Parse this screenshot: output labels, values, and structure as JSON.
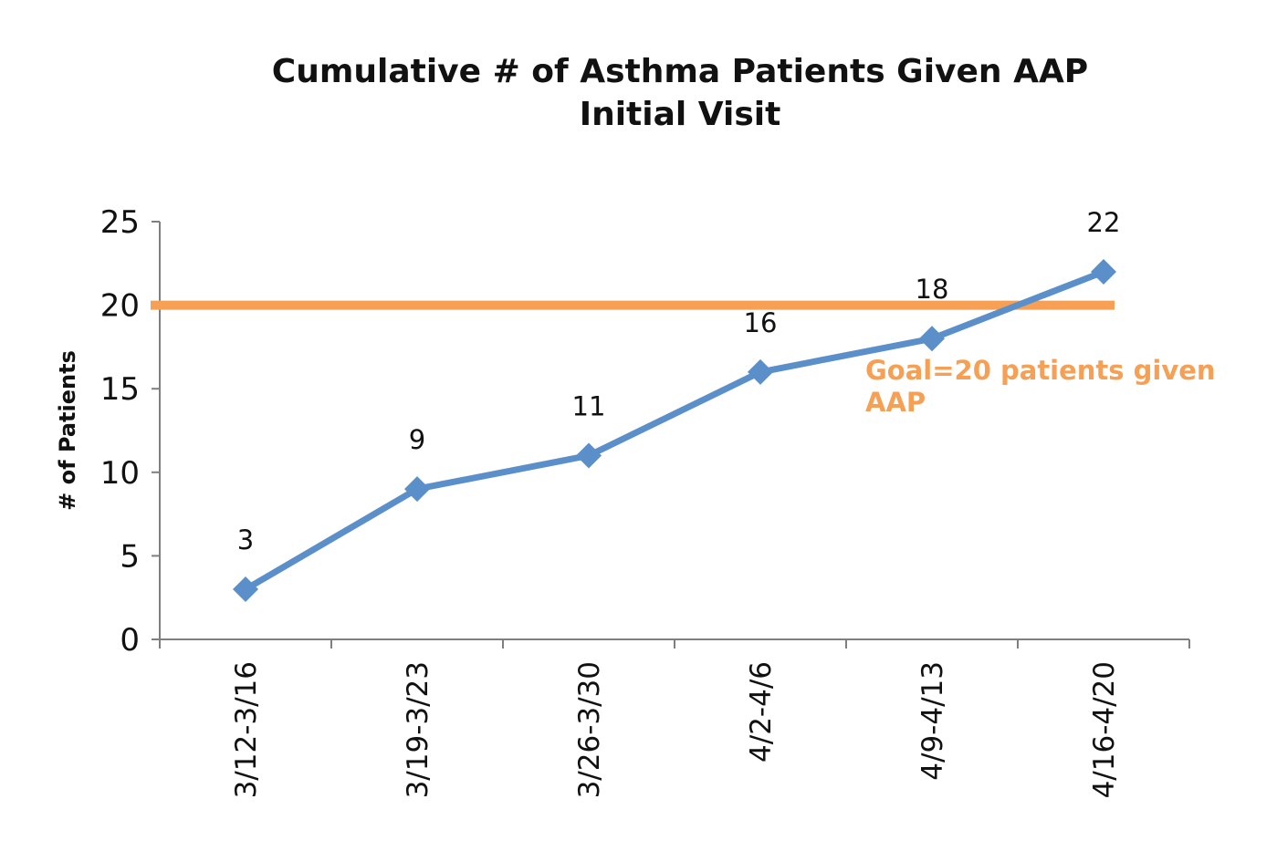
{
  "chart_data": {
    "type": "line",
    "title": [
      "Cumulative # of Asthma Patients Given AAP",
      "Initial Visit"
    ],
    "xlabel": "",
    "ylabel": "# of Patients",
    "categories": [
      "3/12-3/16",
      "3/19-3/23",
      "3/26-3/30",
      "4/2-4/6",
      "4/9-4/13",
      "4/16-4/20"
    ],
    "series": [
      {
        "values": [
          3,
          9,
          11,
          16,
          18,
          22
        ],
        "data_labels": [
          "3",
          "9",
          "11",
          "16",
          "18",
          "22"
        ],
        "color": "#5b8fc9",
        "marker": "diamond"
      }
    ],
    "goal_line": {
      "value": 20,
      "color": "#f5a055"
    },
    "annotation": {
      "lines": [
        "Goal=20 patients given",
        "AAP"
      ],
      "color": "#f5a055"
    },
    "ylim": [
      0,
      25
    ],
    "yticks": [
      "0",
      "5",
      "10",
      "15",
      "20",
      "25"
    ],
    "grid": false,
    "legend": "none"
  }
}
